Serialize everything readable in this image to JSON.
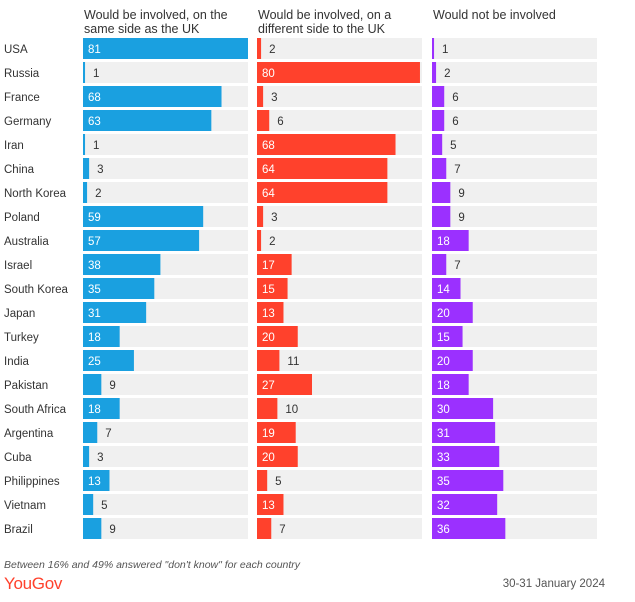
{
  "chart_data": {
    "type": "bar",
    "orientation": "horizontal",
    "categories": [
      "USA",
      "Russia",
      "France",
      "Germany",
      "Iran",
      "China",
      "North Korea",
      "Poland",
      "Australia",
      "Israel",
      "South Korea",
      "Japan",
      "Turkey",
      "India",
      "Pakistan",
      "South Africa",
      "Argentina",
      "Cuba",
      "Philippines",
      "Vietnam",
      "Brazil"
    ],
    "series": [
      {
        "name": "Would be involved, on the same side as the UK",
        "color": "#1aa0e0",
        "values": [
          81,
          1,
          68,
          63,
          1,
          3,
          2,
          59,
          57,
          38,
          35,
          31,
          18,
          25,
          9,
          18,
          7,
          3,
          13,
          5,
          9
        ]
      },
      {
        "name": "Would be involved, on a different side to the UK",
        "color": "#ff412c",
        "values": [
          2,
          80,
          3,
          6,
          68,
          64,
          64,
          3,
          2,
          17,
          15,
          13,
          20,
          11,
          27,
          10,
          19,
          20,
          5,
          13,
          7
        ]
      },
      {
        "name": "Would not be involved",
        "color": "#9b30ff",
        "values": [
          1,
          2,
          6,
          6,
          5,
          7,
          9,
          9,
          18,
          7,
          14,
          20,
          15,
          20,
          18,
          30,
          31,
          33,
          35,
          32,
          36
        ]
      }
    ],
    "xlim": [
      0,
      81
    ],
    "track_color": "#f0f0f0"
  },
  "footer": {
    "note": "Between 16% and 49% answered \"don't know\" for each country",
    "logo": "YouGov",
    "date": "30-31 January 2024"
  }
}
